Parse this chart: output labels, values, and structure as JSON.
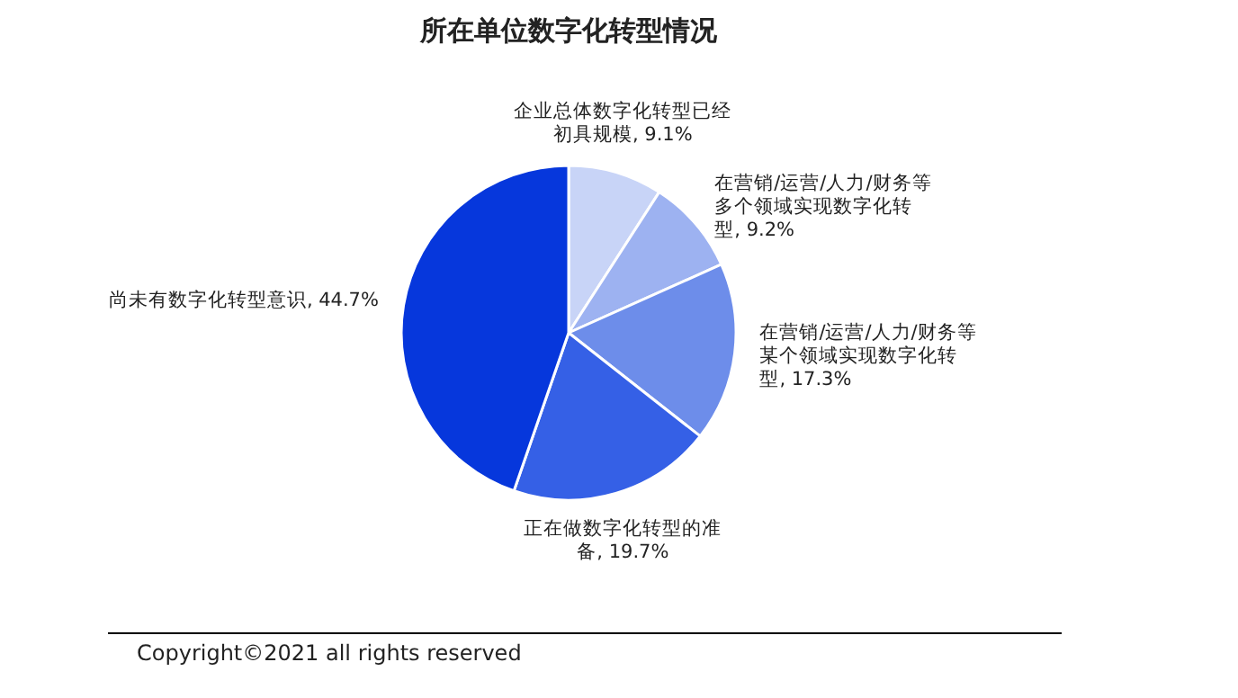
{
  "chart_data": {
    "type": "pie",
    "title": "所在单位数字化转型情况",
    "categories": [
      "企业总体数字化转型已经初具规模",
      "在营销/运营/人力/财务等多个领域实现数字化转型",
      "在营销/运营/人力/财务等某个领域实现数字化转型",
      "正在做数字化转型的准备",
      "尚未有数字化转型意识"
    ],
    "values": [
      9.1,
      9.2,
      17.3,
      19.7,
      44.7
    ],
    "colors": [
      "#c8d4f7",
      "#9db2f1",
      "#6d8dea",
      "#3560e6",
      "#0637dc"
    ],
    "value_labels": [
      "9.1%",
      "9.2%",
      "17.3%",
      "19.7%",
      "44.7%"
    ],
    "annotations": [
      "Copyright©2021 all rights reserved"
    ]
  }
}
